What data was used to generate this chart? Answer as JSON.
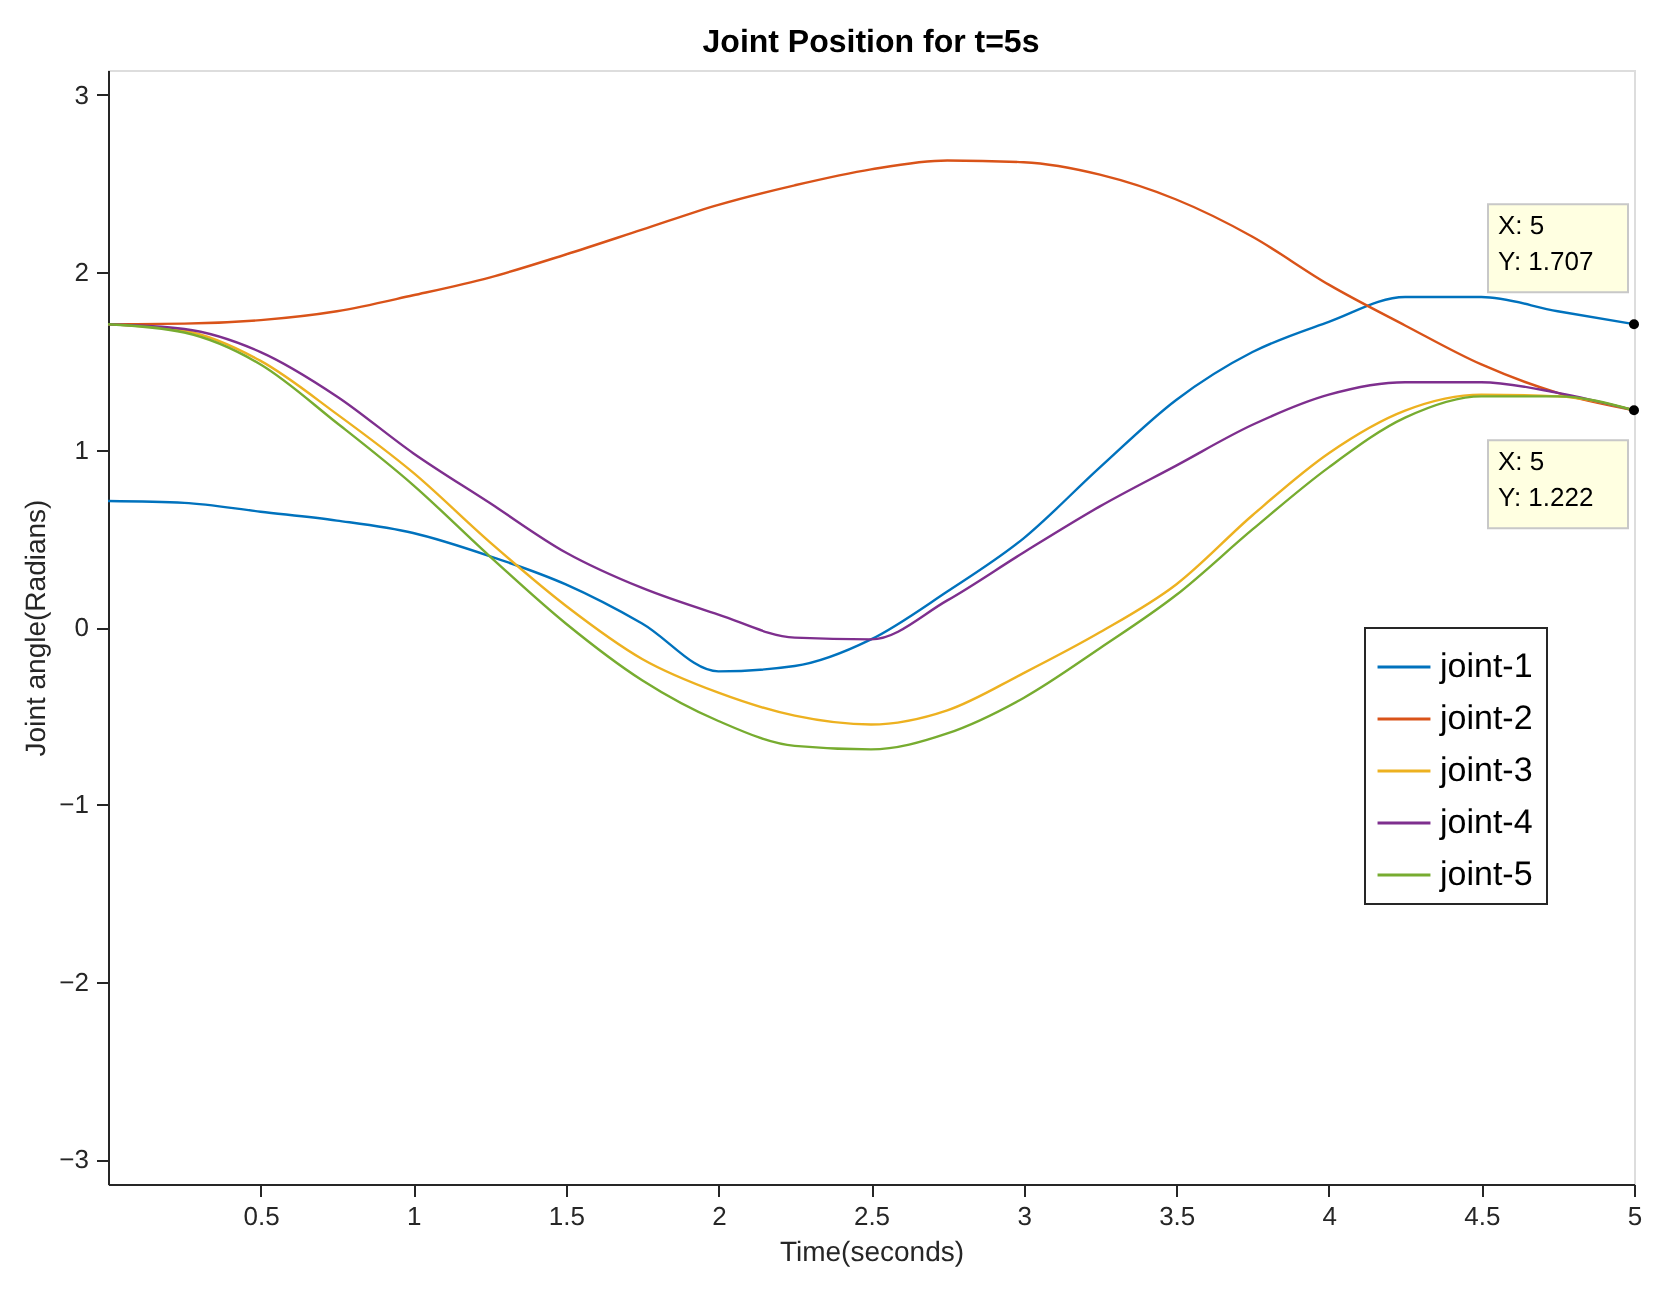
{
  "chart_data": {
    "type": "line",
    "title": "Joint Position for t=5s",
    "xlabel": "Time(seconds)",
    "ylabel": "Joint angle(Radians)",
    "x": [
      0,
      0.25,
      0.5,
      0.75,
      1,
      1.25,
      1.5,
      1.75,
      2,
      2.25,
      2.5,
      2.75,
      3,
      3.25,
      3.5,
      3.75,
      4,
      4.25,
      4.5,
      4.75,
      5
    ],
    "series": [
      {
        "name": "joint-1",
        "color": "#0072bd",
        "values": [
          0.71,
          0.7,
          0.65,
          0.6,
          0.53,
          0.4,
          0.24,
          0.02,
          -0.25,
          -0.22,
          -0.07,
          0.2,
          0.5,
          0.9,
          1.28,
          1.55,
          1.72,
          1.86,
          1.86,
          1.78,
          1.707
        ]
      },
      {
        "name": "joint-2",
        "color": "#d95319",
        "values": [
          1.707,
          1.71,
          1.73,
          1.78,
          1.87,
          1.97,
          2.1,
          2.24,
          2.38,
          2.49,
          2.58,
          2.63,
          2.62,
          2.55,
          2.41,
          2.2,
          1.93,
          1.7,
          1.48,
          1.32,
          1.222
        ]
      },
      {
        "name": "joint-3",
        "color": "#edb120",
        "values": [
          1.707,
          1.67,
          1.5,
          1.2,
          0.87,
          0.48,
          0.12,
          -0.18,
          -0.37,
          -0.5,
          -0.55,
          -0.47,
          -0.26,
          -0.03,
          0.24,
          0.63,
          0.98,
          1.22,
          1.31,
          1.3,
          1.222
        ]
      },
      {
        "name": "joint-4",
        "color": "#7e2f8e",
        "values": [
          1.707,
          1.68,
          1.55,
          1.3,
          0.98,
          0.7,
          0.42,
          0.22,
          0.07,
          -0.06,
          -0.07,
          0.15,
          0.42,
          0.68,
          0.91,
          1.14,
          1.31,
          1.38,
          1.38,
          1.32,
          1.222
        ]
      },
      {
        "name": "joint-5",
        "color": "#77ac30",
        "values": [
          1.707,
          1.66,
          1.48,
          1.15,
          0.8,
          0.4,
          0.02,
          -0.3,
          -0.53,
          -0.67,
          -0.69,
          -0.6,
          -0.4,
          -0.12,
          0.18,
          0.55,
          0.9,
          1.18,
          1.3,
          1.3,
          1.222
        ]
      }
    ],
    "xlim": [
      0,
      5
    ],
    "ylim": [
      -3.14,
      3.14
    ],
    "xticks": [
      0.5,
      1,
      1.5,
      2,
      2.5,
      3,
      3.5,
      4,
      4.5,
      5
    ],
    "yticks": [
      -3,
      -2,
      -1,
      0,
      1,
      2,
      3
    ],
    "grid": false,
    "legend": "right",
    "marker": "none",
    "line_style": "solid",
    "annotations": [
      {
        "text": "X: 5\nY: 1.707",
        "x": 5,
        "y": 1.707
      },
      {
        "text": "X: 5\nY: 1.222",
        "x": 5,
        "y": 1.222
      }
    ]
  }
}
